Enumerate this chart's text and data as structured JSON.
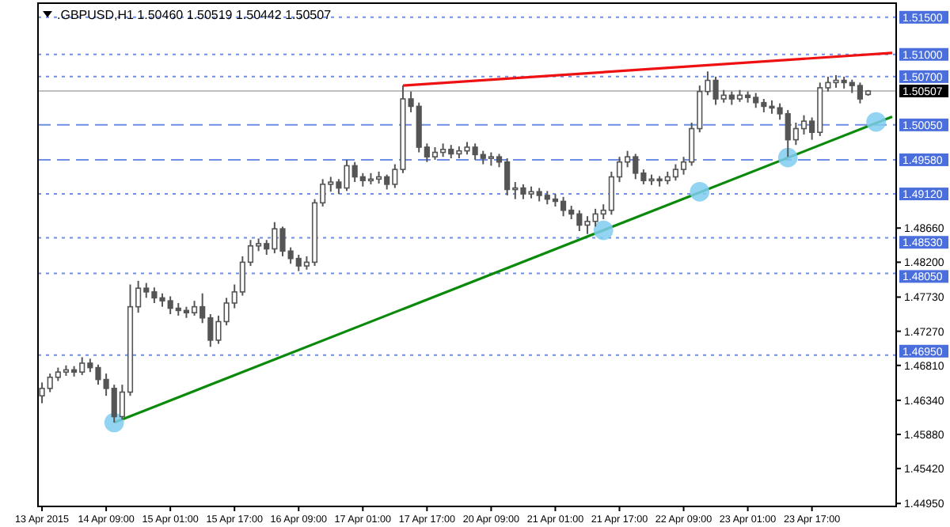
{
  "chart_data": {
    "type": "candlestick",
    "title": ".GBPUSD,H1  1.50460 1.50519 1.50442 1.50507",
    "categories": [
      "13 Apr 2015",
      null,
      null,
      null,
      null,
      null,
      null,
      null,
      "14 Apr 09:00",
      null,
      null,
      null,
      null,
      null,
      null,
      null,
      "15 Apr 01:00",
      null,
      null,
      null,
      null,
      null,
      null,
      null,
      "15 Apr 17:00",
      null,
      null,
      null,
      null,
      null,
      null,
      null,
      "16 Apr 09:00",
      null,
      null,
      null,
      null,
      null,
      null,
      null,
      "17 Apr 01:00",
      null,
      null,
      null,
      null,
      null,
      null,
      null,
      "17 Apr 17:00",
      null,
      null,
      null,
      null,
      null,
      null,
      null,
      "20 Apr 09:00",
      null,
      null,
      null,
      null,
      null,
      null,
      null,
      "21 Apr 01:00",
      null,
      null,
      null,
      null,
      null,
      null,
      null,
      "21 Apr 17:00",
      null,
      null,
      null,
      null,
      null,
      null,
      null,
      "22 Apr 09:00",
      null,
      null,
      null,
      null,
      null,
      null,
      null,
      "23 Apr 01:00",
      null,
      null,
      null,
      null,
      null,
      null,
      null,
      "23 Apr 17:00",
      null,
      null,
      null,
      null,
      null,
      null,
      null,
      null,
      null,
      null
    ],
    "ylim": [
      1.4491,
      1.5169
    ],
    "yticks": [
      {
        "value": 1.4495,
        "label": "1.44950"
      },
      {
        "value": 1.4542,
        "label": "1.45420"
      },
      {
        "value": 1.4588,
        "label": "1.45880"
      },
      {
        "value": 1.4634,
        "label": "1.46340"
      },
      {
        "value": 1.4681,
        "label": "1.46810"
      },
      {
        "value": 1.4727,
        "label": "1.47270"
      },
      {
        "value": 1.4773,
        "label": "1.47730"
      },
      {
        "value": 1.482,
        "label": "1.48200"
      },
      {
        "value": 1.4866,
        "label": "1.48660"
      }
    ],
    "ref_lines": [
      {
        "axis": "y",
        "value": 1.515,
        "label": "1.51500",
        "color": "#6f8ee6",
        "line_style": "dotted"
      },
      {
        "axis": "y",
        "value": 1.51,
        "label": "1.51000",
        "color": "#6f8ee6",
        "line_style": "dotted"
      },
      {
        "axis": "y",
        "value": 1.507,
        "label": "1.50700",
        "color": "#6f8ee6",
        "line_style": "dotted"
      },
      {
        "axis": "y",
        "value": 1.50507,
        "label": "1.50507",
        "color": "#c0c0c0",
        "line_style": "solid"
      },
      {
        "axis": "y",
        "value": 1.5005,
        "label": "1.50050",
        "color": "#6f8ee6",
        "line_style": "dashed"
      },
      {
        "axis": "y",
        "value": 1.4958,
        "label": "1.49580",
        "color": "#6f8ee6",
        "line_style": "dashed"
      },
      {
        "axis": "y",
        "value": 1.4912,
        "label": "1.49120",
        "color": "#6f8ee6",
        "line_style": "dotted"
      },
      {
        "axis": "y",
        "value": 1.4853,
        "label": "1.48530",
        "color": "#6f8ee6",
        "line_style": "dotted"
      },
      {
        "axis": "y",
        "value": 1.4805,
        "label": "1.48050",
        "color": "#6f8ee6",
        "line_style": "dotted"
      },
      {
        "axis": "y",
        "value": 1.4695,
        "label": "1.46950",
        "color": "#6f8ee6",
        "line_style": "dotted"
      }
    ],
    "series": [
      {
        "color": "#555555",
        "ohlc": [
          [
            1.464,
            1.4658,
            1.463,
            1.465
          ],
          [
            1.465,
            1.467,
            1.4645,
            1.4665
          ],
          [
            1.4665,
            1.4678,
            1.466,
            1.4672
          ],
          [
            1.4672,
            1.4681,
            1.4667,
            1.4675
          ],
          [
            1.4675,
            1.468,
            1.4666,
            1.4672
          ],
          [
            1.4672,
            1.4692,
            1.4668,
            1.4684
          ],
          [
            1.4684,
            1.469,
            1.4672,
            1.4678
          ],
          [
            1.4678,
            1.4682,
            1.4655,
            1.4662
          ],
          [
            1.4662,
            1.467,
            1.464,
            1.465
          ],
          [
            1.465,
            1.4655,
            1.4604,
            1.4612
          ],
          [
            1.4612,
            1.4655,
            1.4608,
            1.4645
          ],
          [
            1.4645,
            1.479,
            1.464,
            1.476
          ],
          [
            1.476,
            1.4795,
            1.4752,
            1.4785
          ],
          [
            1.4785,
            1.4792,
            1.4772,
            1.478
          ],
          [
            1.478,
            1.4786,
            1.4765,
            1.4772
          ],
          [
            1.4772,
            1.4778,
            1.476,
            1.4768
          ],
          [
            1.4768,
            1.4774,
            1.475,
            1.4758
          ],
          [
            1.4758,
            1.4765,
            1.4748,
            1.4755
          ],
          [
            1.4755,
            1.476,
            1.4745,
            1.4752
          ],
          [
            1.4752,
            1.4768,
            1.4748,
            1.476
          ],
          [
            1.476,
            1.4778,
            1.4738,
            1.4745
          ],
          [
            1.4745,
            1.475,
            1.4706,
            1.4715
          ],
          [
            1.4715,
            1.4748,
            1.471,
            1.474
          ],
          [
            1.474,
            1.4772,
            1.4735,
            1.4765
          ],
          [
            1.4765,
            1.479,
            1.4758,
            1.478
          ],
          [
            1.478,
            1.4828,
            1.4775,
            1.482
          ],
          [
            1.482,
            1.485,
            1.4815,
            1.4842
          ],
          [
            1.4842,
            1.4852,
            1.4835,
            1.4845
          ],
          [
            1.4845,
            1.485,
            1.483,
            1.4838
          ],
          [
            1.4838,
            1.4874,
            1.4832,
            1.4865
          ],
          [
            1.4865,
            1.4868,
            1.4828,
            1.4835
          ],
          [
            1.4835,
            1.484,
            1.4818,
            1.4825
          ],
          [
            1.4825,
            1.483,
            1.4808,
            1.4815
          ],
          [
            1.4815,
            1.4828,
            1.481,
            1.482
          ],
          [
            1.482,
            1.4905,
            1.4815,
            1.49
          ],
          [
            1.49,
            1.4932,
            1.4895,
            1.4925
          ],
          [
            1.4925,
            1.4935,
            1.4915,
            1.4928
          ],
          [
            1.4928,
            1.4932,
            1.4912,
            1.492
          ],
          [
            1.492,
            1.4958,
            1.4916,
            1.495
          ],
          [
            1.495,
            1.4955,
            1.4928,
            1.4935
          ],
          [
            1.4935,
            1.494,
            1.4922,
            1.493
          ],
          [
            1.493,
            1.494,
            1.4925,
            1.4932
          ],
          [
            1.4932,
            1.4942,
            1.4926,
            1.4935
          ],
          [
            1.4935,
            1.4938,
            1.4918,
            1.4925
          ],
          [
            1.4925,
            1.4952,
            1.492,
            1.4945
          ],
          [
            1.4945,
            1.5058,
            1.494,
            1.504
          ],
          [
            1.504,
            1.505,
            1.5022,
            1.503
          ],
          [
            1.503,
            1.5035,
            1.4968,
            1.4975
          ],
          [
            1.4975,
            1.498,
            1.4955,
            1.4962
          ],
          [
            1.4962,
            1.4975,
            1.4958,
            1.4968
          ],
          [
            1.4968,
            1.498,
            1.4962,
            1.4972
          ],
          [
            1.4972,
            1.4978,
            1.496,
            1.4966
          ],
          [
            1.4966,
            1.4976,
            1.496,
            1.497
          ],
          [
            1.497,
            1.4982,
            1.4965,
            1.4975
          ],
          [
            1.4975,
            1.498,
            1.4958,
            1.4965
          ],
          [
            1.4965,
            1.497,
            1.4952,
            1.496
          ],
          [
            1.496,
            1.4968,
            1.495,
            1.4962
          ],
          [
            1.4962,
            1.4966,
            1.4948,
            1.4955
          ],
          [
            1.4955,
            1.496,
            1.491,
            1.4918
          ],
          [
            1.4918,
            1.4928,
            1.4905,
            1.492
          ],
          [
            1.492,
            1.4925,
            1.4905,
            1.4912
          ],
          [
            1.4912,
            1.4922,
            1.4906,
            1.4915
          ],
          [
            1.4915,
            1.492,
            1.4902,
            1.491
          ],
          [
            1.491,
            1.4916,
            1.4898,
            1.4905
          ],
          [
            1.4905,
            1.4912,
            1.4895,
            1.4902
          ],
          [
            1.4902,
            1.4908,
            1.4882,
            1.489
          ],
          [
            1.489,
            1.4896,
            1.4878,
            1.4885
          ],
          [
            1.4885,
            1.489,
            1.4862,
            1.487
          ],
          [
            1.487,
            1.4882,
            1.4858,
            1.4875
          ],
          [
            1.4875,
            1.4892,
            1.4868,
            1.4885
          ],
          [
            1.4885,
            1.4898,
            1.4878,
            1.489
          ],
          [
            1.489,
            1.4942,
            1.4884,
            1.4935
          ],
          [
            1.4935,
            1.4962,
            1.4928,
            1.4955
          ],
          [
            1.4955,
            1.497,
            1.4948,
            1.4962
          ],
          [
            1.4962,
            1.4966,
            1.4932,
            1.494
          ],
          [
            1.494,
            1.4945,
            1.4925,
            1.493
          ],
          [
            1.493,
            1.4938,
            1.4924,
            1.4932
          ],
          [
            1.4932,
            1.4936,
            1.4922,
            1.493
          ],
          [
            1.493,
            1.4942,
            1.4925,
            1.4935
          ],
          [
            1.4935,
            1.4952,
            1.493,
            1.4945
          ],
          [
            1.4945,
            1.4962,
            1.4938,
            1.4955
          ],
          [
            1.4955,
            1.5008,
            1.495,
            1.5
          ],
          [
            1.5,
            1.5058,
            1.4995,
            1.505
          ],
          [
            1.505,
            1.5077,
            1.5045,
            1.5065
          ],
          [
            1.5065,
            1.507,
            1.5032,
            1.504
          ],
          [
            1.504,
            1.5052,
            1.5035,
            1.5045
          ],
          [
            1.5045,
            1.505,
            1.5032,
            1.504
          ],
          [
            1.504,
            1.5052,
            1.5036,
            1.5045
          ],
          [
            1.5045,
            1.505,
            1.5035,
            1.5042
          ],
          [
            1.5042,
            1.5048,
            1.5028,
            1.5035
          ],
          [
            1.5035,
            1.504,
            1.5022,
            1.503
          ],
          [
            1.503,
            1.5038,
            1.502,
            1.5028
          ],
          [
            1.5028,
            1.5034,
            1.5012,
            1.502
          ],
          [
            1.502,
            1.5025,
            1.4962,
            1.4985
          ],
          [
            1.4985,
            1.5008,
            1.4978,
            1.5
          ],
          [
            1.5,
            1.5018,
            1.4992,
            1.501
          ],
          [
            1.501,
            1.5015,
            1.4985,
            1.4995
          ],
          [
            1.4995,
            1.5062,
            1.499,
            1.5055
          ],
          [
            1.5055,
            1.507,
            1.505,
            1.5062
          ],
          [
            1.5062,
            1.5072,
            1.5055,
            1.5065
          ],
          [
            1.5065,
            1.507,
            1.5054,
            1.5062
          ],
          [
            1.5062,
            1.5066,
            1.5048,
            1.5058
          ],
          [
            1.5058,
            1.5062,
            1.5034,
            1.504
          ],
          [
            1.5046,
            1.50519,
            1.50442,
            1.50507
          ],
          null,
          null,
          null
        ]
      },
      {
        "type": "line",
        "color": "#0a8a0a",
        "values": [
          null,
          null,
          null,
          null,
          null,
          null,
          null,
          null,
          null,
          1.4604,
          null,
          null,
          null,
          null,
          null,
          null,
          null,
          null,
          null,
          null,
          null,
          null,
          null,
          null,
          null,
          null,
          null,
          null,
          null,
          null,
          null,
          null,
          null,
          null,
          null,
          null,
          null,
          null,
          null,
          null,
          null,
          null,
          null,
          null,
          null,
          null,
          null,
          null,
          null,
          null,
          null,
          null,
          null,
          null,
          null,
          null,
          null,
          null,
          null,
          null,
          null,
          null,
          null,
          null,
          null,
          null,
          null,
          null,
          null,
          null,
          null,
          null,
          null,
          null,
          null,
          null,
          null,
          null,
          null,
          null,
          null,
          null,
          null,
          null,
          null,
          null,
          null,
          null,
          null,
          null,
          null,
          null,
          null,
          null,
          null,
          null,
          null,
          null,
          null,
          null,
          null,
          null,
          null,
          null,
          null,
          null,
          1.5016
        ]
      },
      {
        "type": "line",
        "color": "#ee1111",
        "values": [
          null,
          null,
          null,
          null,
          null,
          null,
          null,
          null,
          null,
          null,
          null,
          null,
          null,
          null,
          null,
          null,
          null,
          null,
          null,
          null,
          null,
          null,
          null,
          null,
          null,
          null,
          null,
          null,
          null,
          null,
          null,
          null,
          null,
          null,
          null,
          null,
          null,
          null,
          null,
          null,
          null,
          null,
          null,
          null,
          null,
          1.5058,
          null,
          null,
          null,
          null,
          null,
          null,
          null,
          null,
          null,
          null,
          null,
          null,
          null,
          null,
          null,
          null,
          null,
          null,
          null,
          null,
          null,
          null,
          null,
          null,
          null,
          null,
          null,
          null,
          null,
          null,
          null,
          null,
          null,
          null,
          null,
          null,
          null,
          null,
          null,
          null,
          null,
          null,
          null,
          null,
          null,
          null,
          null,
          null,
          null,
          null,
          null,
          null,
          null,
          null,
          null,
          null,
          null,
          null,
          null,
          null,
          1.5102
        ]
      },
      {
        "type": "scatter",
        "color": "#7fcdf0",
        "marker": "circle",
        "values": [
          null,
          null,
          null,
          null,
          null,
          null,
          null,
          null,
          null,
          1.4604,
          null,
          null,
          null,
          null,
          null,
          null,
          null,
          null,
          null,
          null,
          null,
          null,
          null,
          null,
          null,
          null,
          null,
          null,
          null,
          null,
          null,
          null,
          null,
          null,
          null,
          null,
          null,
          null,
          null,
          null,
          null,
          null,
          null,
          null,
          null,
          null,
          null,
          null,
          null,
          null,
          null,
          null,
          null,
          null,
          null,
          null,
          null,
          null,
          null,
          null,
          null,
          null,
          null,
          null,
          null,
          null,
          null,
          null,
          null,
          null,
          1.4863,
          null,
          null,
          null,
          null,
          null,
          null,
          null,
          null,
          null,
          null,
          null,
          1.4915,
          null,
          null,
          null,
          null,
          null,
          null,
          null,
          null,
          null,
          null,
          1.4961,
          null,
          null,
          null,
          null,
          null,
          null,
          null,
          null,
          null,
          null,
          1.5009,
          null,
          null
        ]
      }
    ]
  }
}
